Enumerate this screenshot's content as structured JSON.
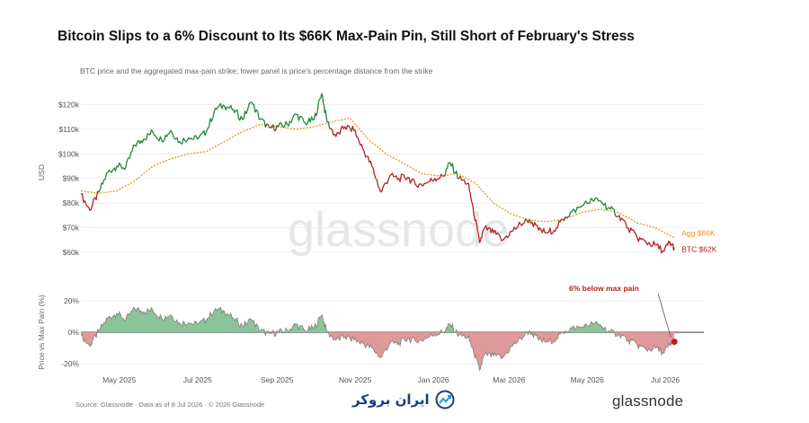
{
  "header": {
    "title": "Bitcoin Slips to a 6% Discount to Its $66K Max-Pain Pin, Still Short of February's Stress",
    "subtitle": "BTC price and the aggregated max-pain strike; lower panel is price's percentage distance from the strike"
  },
  "footer": {
    "source": "Source: Glassnode · Data as of 8 Jul 2026 · © 2026 Glassnode",
    "brand": "glassnode",
    "partner_logo_text": "ایران بروکر"
  },
  "watermark": "glassnode",
  "colors": {
    "btc_above": "#1e8a3c",
    "btc_below": "#b52222",
    "max_pain": "#e8951e",
    "pos_fill": "#8cc49a",
    "neg_fill": "#de9a9a",
    "grid": "#ececec"
  },
  "chart_data": [
    {
      "type": "line",
      "panel": "upper",
      "ylabel": "USD",
      "ylim": [
        56000,
        126000
      ],
      "yticks": [
        60000,
        70000,
        80000,
        90000,
        100000,
        110000,
        120000
      ],
      "ytick_labels": [
        "$60k",
        "$70k",
        "$80k",
        "$90k",
        "$100k",
        "$110k",
        "$120k"
      ],
      "xlim": [
        "2025-04-01",
        "2026-07-31"
      ],
      "xticks": [
        "2025-05-01",
        "2025-07-01",
        "2025-09-01",
        "2025-11-01",
        "2026-01-01",
        "2026-03-01",
        "2026-05-01",
        "2026-07-01"
      ],
      "xtick_labels": [
        "May 2025",
        "Jul 2025",
        "Sep 2025",
        "Nov 2025",
        "Jan 2026",
        "Mar 2026",
        "May 2026",
        "Jul 2026"
      ],
      "grid": true,
      "legend": "none",
      "series": [
        {
          "name": "BTC",
          "end_label": "BTC $62K",
          "note": "colored green when above max pain, red when below",
          "points": [
            [
              "2025-04-01",
              83500
            ],
            [
              "2025-04-08",
              77000
            ],
            [
              "2025-04-15",
              84500
            ],
            [
              "2025-04-22",
              92500
            ],
            [
              "2025-04-29",
              95000
            ],
            [
              "2025-05-06",
              94500
            ],
            [
              "2025-05-13",
              103500
            ],
            [
              "2025-05-20",
              106000
            ],
            [
              "2025-05-27",
              109000
            ],
            [
              "2025-06-03",
              105500
            ],
            [
              "2025-06-10",
              109500
            ],
            [
              "2025-06-17",
              105000
            ],
            [
              "2025-06-24",
              106500
            ],
            [
              "2025-07-01",
              106000
            ],
            [
              "2025-07-08",
              109000
            ],
            [
              "2025-07-15",
              118500
            ],
            [
              "2025-07-22",
              119500
            ],
            [
              "2025-07-29",
              118000
            ],
            [
              "2025-08-05",
              114000
            ],
            [
              "2025-08-12",
              121000
            ],
            [
              "2025-08-19",
              114000
            ],
            [
              "2025-08-26",
              110500
            ],
            [
              "2025-09-02",
              111000
            ],
            [
              "2025-09-09",
              112000
            ],
            [
              "2025-09-16",
              116000
            ],
            [
              "2025-09-23",
              112500
            ],
            [
              "2025-09-30",
              114000
            ],
            [
              "2025-10-06",
              124500
            ],
            [
              "2025-10-10",
              113000
            ],
            [
              "2025-10-17",
              107000
            ],
            [
              "2025-10-24",
              111000
            ],
            [
              "2025-10-31",
              109500
            ],
            [
              "2025-11-07",
              102000
            ],
            [
              "2025-11-14",
              95000
            ],
            [
              "2025-11-21",
              84500
            ],
            [
              "2025-11-28",
              91000
            ],
            [
              "2025-12-05",
              90000
            ],
            [
              "2025-12-12",
              90500
            ],
            [
              "2025-12-19",
              87000
            ],
            [
              "2025-12-26",
              88000
            ],
            [
              "2026-01-02",
              90000
            ],
            [
              "2026-01-09",
              91000
            ],
            [
              "2026-01-14",
              96500
            ],
            [
              "2026-01-21",
              90000
            ],
            [
              "2026-01-28",
              88000
            ],
            [
              "2026-02-01",
              78000
            ],
            [
              "2026-02-06",
              64000
            ],
            [
              "2026-02-10",
              70000
            ],
            [
              "2026-02-17",
              68000
            ],
            [
              "2026-02-24",
              65000
            ],
            [
              "2026-03-03",
              68500
            ],
            [
              "2026-03-10",
              71500
            ],
            [
              "2026-03-17",
              73500
            ],
            [
              "2026-03-24",
              69000
            ],
            [
              "2026-03-31",
              68000
            ],
            [
              "2026-04-07",
              70000
            ],
            [
              "2026-04-14",
              74500
            ],
            [
              "2026-04-21",
              77000
            ],
            [
              "2026-04-28",
              79000
            ],
            [
              "2026-05-05",
              81500
            ],
            [
              "2026-05-12",
              80500
            ],
            [
              "2026-05-19",
              77500
            ],
            [
              "2026-05-26",
              75000
            ],
            [
              "2026-06-02",
              70000
            ],
            [
              "2026-06-09",
              66000
            ],
            [
              "2026-06-16",
              64000
            ],
            [
              "2026-06-23",
              63000
            ],
            [
              "2026-06-30",
              60500
            ],
            [
              "2026-07-04",
              64000
            ],
            [
              "2026-07-08",
              62000
            ]
          ]
        },
        {
          "name": "Agg",
          "end_label": "Agg $66K",
          "style": "dotted",
          "points": [
            [
              "2025-04-01",
              85000
            ],
            [
              "2025-04-15",
              84000
            ],
            [
              "2025-04-29",
              85000
            ],
            [
              "2025-05-13",
              89000
            ],
            [
              "2025-05-27",
              95000
            ],
            [
              "2025-06-10",
              98000
            ],
            [
              "2025-06-24",
              100000
            ],
            [
              "2025-07-08",
              101000
            ],
            [
              "2025-07-22",
              105000
            ],
            [
              "2025-08-05",
              109000
            ],
            [
              "2025-08-19",
              112000
            ],
            [
              "2025-09-02",
              111000
            ],
            [
              "2025-09-16",
              110000
            ],
            [
              "2025-09-30",
              111000
            ],
            [
              "2025-10-14",
              113000
            ],
            [
              "2025-10-28",
              114500
            ],
            [
              "2025-11-11",
              106000
            ],
            [
              "2025-11-25",
              100000
            ],
            [
              "2025-12-09",
              96000
            ],
            [
              "2025-12-23",
              92000
            ],
            [
              "2026-01-06",
              91000
            ],
            [
              "2026-01-20",
              92000
            ],
            [
              "2026-02-03",
              88000
            ],
            [
              "2026-02-17",
              80000
            ],
            [
              "2026-03-03",
              75500
            ],
            [
              "2026-03-17",
              73000
            ],
            [
              "2026-03-31",
              72500
            ],
            [
              "2026-04-14",
              73500
            ],
            [
              "2026-04-28",
              76500
            ],
            [
              "2026-05-12",
              77500
            ],
            [
              "2026-05-26",
              76000
            ],
            [
              "2026-06-09",
              72000
            ],
            [
              "2026-06-23",
              70000
            ],
            [
              "2026-07-08",
              66000
            ]
          ]
        }
      ]
    },
    {
      "type": "area",
      "panel": "lower",
      "ylabel": "Price vs Max Pain (%)",
      "ylim": [
        -25,
        25
      ],
      "yticks": [
        -20,
        0,
        20
      ],
      "ytick_labels": [
        "-20%",
        "0%",
        "20%"
      ],
      "grid": true,
      "legend": "none",
      "annotation": {
        "text": "6% below max pain",
        "date": "2026-07-08",
        "value": -6
      },
      "series": [
        {
          "name": "Price vs Max Pain (%)",
          "points": [
            [
              "2025-04-01",
              -2
            ],
            [
              "2025-04-08",
              -9
            ],
            [
              "2025-04-15",
              1
            ],
            [
              "2025-04-22",
              9
            ],
            [
              "2025-04-29",
              12
            ],
            [
              "2025-05-06",
              8
            ],
            [
              "2025-05-13",
              15
            ],
            [
              "2025-05-20",
              13
            ],
            [
              "2025-05-27",
              14
            ],
            [
              "2025-06-03",
              9
            ],
            [
              "2025-06-10",
              11
            ],
            [
              "2025-06-17",
              6
            ],
            [
              "2025-06-24",
              6
            ],
            [
              "2025-07-01",
              5
            ],
            [
              "2025-07-08",
              8
            ],
            [
              "2025-07-15",
              15
            ],
            [
              "2025-07-22",
              13
            ],
            [
              "2025-07-29",
              9
            ],
            [
              "2025-08-05",
              4
            ],
            [
              "2025-08-12",
              8
            ],
            [
              "2025-08-19",
              1
            ],
            [
              "2025-08-26",
              -1
            ],
            [
              "2025-09-02",
              0
            ],
            [
              "2025-09-09",
              1
            ],
            [
              "2025-09-16",
              5
            ],
            [
              "2025-09-23",
              1
            ],
            [
              "2025-09-30",
              3
            ],
            [
              "2025-10-06",
              11
            ],
            [
              "2025-10-10",
              0
            ],
            [
              "2025-10-17",
              -5
            ],
            [
              "2025-10-24",
              -3
            ],
            [
              "2025-10-31",
              -5
            ],
            [
              "2025-11-07",
              -7
            ],
            [
              "2025-11-14",
              -10
            ],
            [
              "2025-11-21",
              -16
            ],
            [
              "2025-11-28",
              -7
            ],
            [
              "2025-12-05",
              -7
            ],
            [
              "2025-12-12",
              -4
            ],
            [
              "2025-12-19",
              -6
            ],
            [
              "2025-12-26",
              -4
            ],
            [
              "2026-01-02",
              -1
            ],
            [
              "2026-01-09",
              0
            ],
            [
              "2026-01-14",
              5
            ],
            [
              "2026-01-21",
              -2
            ],
            [
              "2026-01-28",
              -3
            ],
            [
              "2026-02-01",
              -11
            ],
            [
              "2026-02-06",
              -24
            ],
            [
              "2026-02-10",
              -14
            ],
            [
              "2026-02-17",
              -15
            ],
            [
              "2026-02-24",
              -16
            ],
            [
              "2026-03-03",
              -9
            ],
            [
              "2026-03-10",
              -4
            ],
            [
              "2026-03-17",
              1
            ],
            [
              "2026-03-24",
              -5
            ],
            [
              "2026-03-31",
              -6
            ],
            [
              "2026-04-07",
              -4
            ],
            [
              "2026-04-14",
              1
            ],
            [
              "2026-04-21",
              3
            ],
            [
              "2026-04-28",
              3
            ],
            [
              "2026-05-05",
              6
            ],
            [
              "2026-05-12",
              4
            ],
            [
              "2026-05-19",
              0
            ],
            [
              "2026-05-26",
              -1
            ],
            [
              "2026-06-02",
              -5
            ],
            [
              "2026-06-09",
              -8
            ],
            [
              "2026-06-16",
              -11
            ],
            [
              "2026-06-23",
              -10
            ],
            [
              "2026-06-30",
              -13
            ],
            [
              "2026-07-04",
              -8
            ],
            [
              "2026-07-08",
              -6
            ]
          ]
        }
      ]
    }
  ]
}
